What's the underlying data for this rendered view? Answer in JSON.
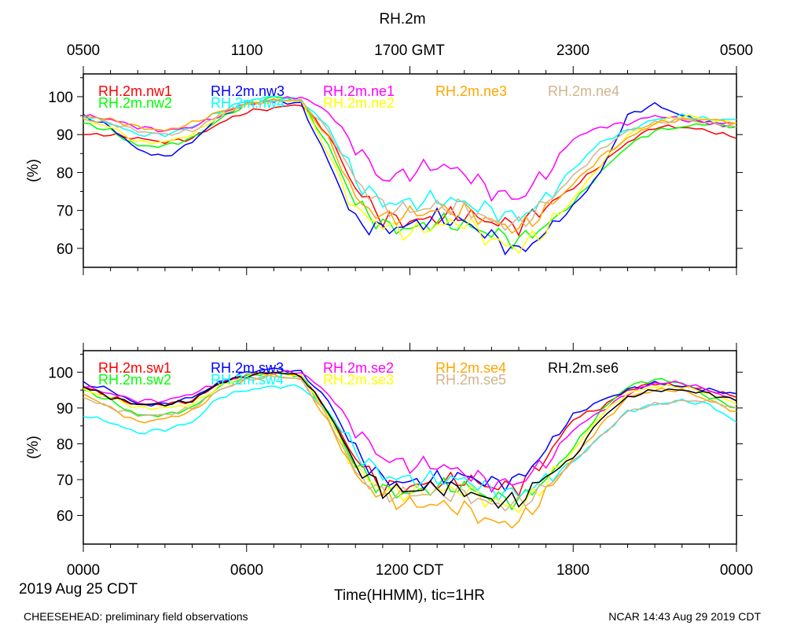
{
  "page": {
    "title": "RH.2m",
    "top_axis_ticks": [
      "0500",
      "1100",
      "1700 GMT",
      "2300",
      "0500"
    ],
    "bottom_axis_ticks": [
      "0000",
      "0600",
      "1200 CDT",
      "1800",
      "0000"
    ],
    "date_label": "2019 Aug 25 CDT",
    "xlabel": "Time(HHMM), tic=1HR",
    "footer_left": "CHEESEHEAD: preliminary field observations",
    "footer_right": "NCAR 14:43 Aug 29 2019 CDT"
  },
  "chart_data": [
    {
      "type": "line",
      "name": "top-panel",
      "ylabel": "(%)",
      "ylim": [
        55,
        106
      ],
      "yticks": [
        60,
        70,
        80,
        90,
        100
      ],
      "xlim": [
        0,
        24
      ],
      "x": [
        0,
        1,
        2,
        3,
        4,
        5,
        6,
        7,
        8,
        9,
        10,
        11,
        12,
        13,
        14,
        15,
        16,
        17,
        18,
        19,
        20,
        21,
        22,
        23,
        24
      ],
      "series": [
        {
          "name": "RH.2m.nw1",
          "color": "#ff0000",
          "values": [
            90,
            90,
            89,
            88,
            89,
            93,
            96,
            97,
            98,
            90,
            76,
            68,
            67,
            68,
            69,
            67,
            66,
            71,
            76,
            82,
            88,
            92,
            92,
            91,
            89
          ]
        },
        {
          "name": "RH.2m.nw2",
          "color": "#00ff00",
          "values": [
            93,
            91,
            87,
            87,
            89,
            94,
            98,
            100,
            99,
            87,
            72,
            66,
            65,
            67,
            66,
            64,
            62,
            66,
            72,
            80,
            87,
            91,
            92,
            93,
            92
          ]
        },
        {
          "name": "RH.2m.nw3",
          "color": "#0000ff",
          "values": [
            95,
            92,
            86,
            84,
            88,
            95,
            98,
            99,
            98,
            83,
            67,
            65,
            66,
            68,
            67,
            63,
            59,
            64,
            71,
            80,
            95,
            98,
            95,
            93,
            92
          ]
        },
        {
          "name": "RH.2m.nw4",
          "color": "#00ffff",
          "values": [
            95,
            93,
            90,
            90,
            92,
            96,
            99,
            100,
            99,
            92,
            78,
            72,
            72,
            73,
            72,
            70,
            68,
            73,
            81,
            88,
            91,
            94,
            95,
            94,
            94
          ]
        },
        {
          "name": "RH.2m.ne1",
          "color": "#ff00ff",
          "values": [
            95,
            94,
            92,
            91,
            92,
            95,
            98,
            99,
            100,
            96,
            87,
            78,
            80,
            82,
            80,
            75,
            73,
            80,
            89,
            92,
            93,
            95,
            94,
            93,
            93
          ]
        },
        {
          "name": "RH.2m.ne2",
          "color": "#ffff00",
          "values": [
            94,
            92,
            88,
            88,
            90,
            95,
            98,
            99,
            99,
            85,
            70,
            66,
            64,
            66,
            67,
            62,
            60,
            65,
            73,
            82,
            90,
            93,
            95,
            94,
            93
          ]
        },
        {
          "name": "RH.2m.ne3",
          "color": "#ffa500",
          "values": [
            95,
            94,
            92,
            91,
            93,
            96,
            98,
            99,
            99,
            89,
            73,
            68,
            69,
            70,
            70,
            67,
            65,
            70,
            77,
            84,
            89,
            93,
            94,
            94,
            93
          ]
        },
        {
          "name": "RH.2m.ne4",
          "color": "#d2b48c",
          "values": [
            94,
            93,
            91,
            90,
            91,
            95,
            98,
            99,
            99,
            91,
            78,
            71,
            70,
            71,
            71,
            67,
            66,
            72,
            79,
            86,
            91,
            93,
            94,
            93,
            92
          ]
        }
      ]
    },
    {
      "type": "line",
      "name": "bottom-panel",
      "ylabel": "(%)",
      "ylim": [
        52,
        106
      ],
      "yticks": [
        60,
        70,
        80,
        90,
        100
      ],
      "xlim": [
        0,
        24
      ],
      "x": [
        0,
        1,
        2,
        3,
        4,
        5,
        6,
        7,
        8,
        9,
        10,
        11,
        12,
        13,
        14,
        15,
        16,
        17,
        18,
        19,
        20,
        21,
        22,
        23,
        24
      ],
      "series": [
        {
          "name": "RH.2m.sw1",
          "color": "#ff0000",
          "values": [
            96,
            93,
            91,
            91,
            92,
            97,
            99,
            100,
            99,
            89,
            76,
            68,
            68,
            69,
            70,
            68,
            68,
            76,
            87,
            90,
            95,
            97,
            96,
            95,
            93
          ]
        },
        {
          "name": "RH.2m.sw2",
          "color": "#00ff00",
          "values": [
            95,
            92,
            88,
            88,
            90,
            96,
            99,
            100,
            99,
            88,
            74,
            67,
            66,
            68,
            68,
            65,
            64,
            70,
            79,
            89,
            96,
            98,
            97,
            93,
            90
          ]
        },
        {
          "name": "RH.2m.sw3",
          "color": "#0000ff",
          "values": [
            97,
            95,
            91,
            91,
            93,
            97,
            100,
            101,
            100,
            92,
            78,
            70,
            69,
            70,
            71,
            69,
            70,
            78,
            88,
            92,
            95,
            97,
            96,
            95,
            94
          ]
        },
        {
          "name": "RH.2m.sw4",
          "color": "#00ffff",
          "values": [
            88,
            86,
            83,
            84,
            86,
            93,
            95,
            96,
            96,
            89,
            78,
            71,
            70,
            70,
            70,
            67,
            66,
            70,
            75,
            82,
            89,
            91,
            92,
            91,
            86
          ]
        },
        {
          "name": "RH.2m.se2",
          "color": "#ff00ff",
          "values": [
            96,
            94,
            92,
            92,
            94,
            97,
            99,
            100,
            100,
            94,
            84,
            76,
            74,
            74,
            72,
            69,
            69,
            75,
            84,
            89,
            94,
            97,
            97,
            95,
            92
          ]
        },
        {
          "name": "RH.2m.se3",
          "color": "#ffff00",
          "values": [
            95,
            93,
            90,
            90,
            91,
            96,
            99,
            100,
            99,
            88,
            73,
            67,
            66,
            67,
            67,
            64,
            62,
            69,
            78,
            88,
            94,
            96,
            96,
            94,
            91
          ]
        },
        {
          "name": "RH.2m.se4",
          "color": "#ffa500",
          "values": [
            94,
            90,
            86,
            87,
            89,
            95,
            98,
            99,
            98,
            86,
            71,
            65,
            63,
            63,
            62,
            58,
            58,
            66,
            76,
            85,
            93,
            95,
            95,
            92,
            89
          ]
        },
        {
          "name": "RH.2m.se5",
          "color": "#d2b48c",
          "values": [
            93,
            90,
            88,
            88,
            90,
            95,
            98,
            99,
            98,
            87,
            72,
            66,
            66,
            66,
            66,
            63,
            63,
            68,
            75,
            82,
            89,
            91,
            92,
            92,
            90
          ]
        },
        {
          "name": "RH.2m.se6",
          "color": "#000000",
          "values": [
            96,
            93,
            91,
            91,
            92,
            97,
            99,
            100,
            99,
            89,
            74,
            67,
            67,
            68,
            67,
            64,
            64,
            71,
            76,
            87,
            93,
            95,
            95,
            94,
            92
          ]
        }
      ]
    }
  ]
}
